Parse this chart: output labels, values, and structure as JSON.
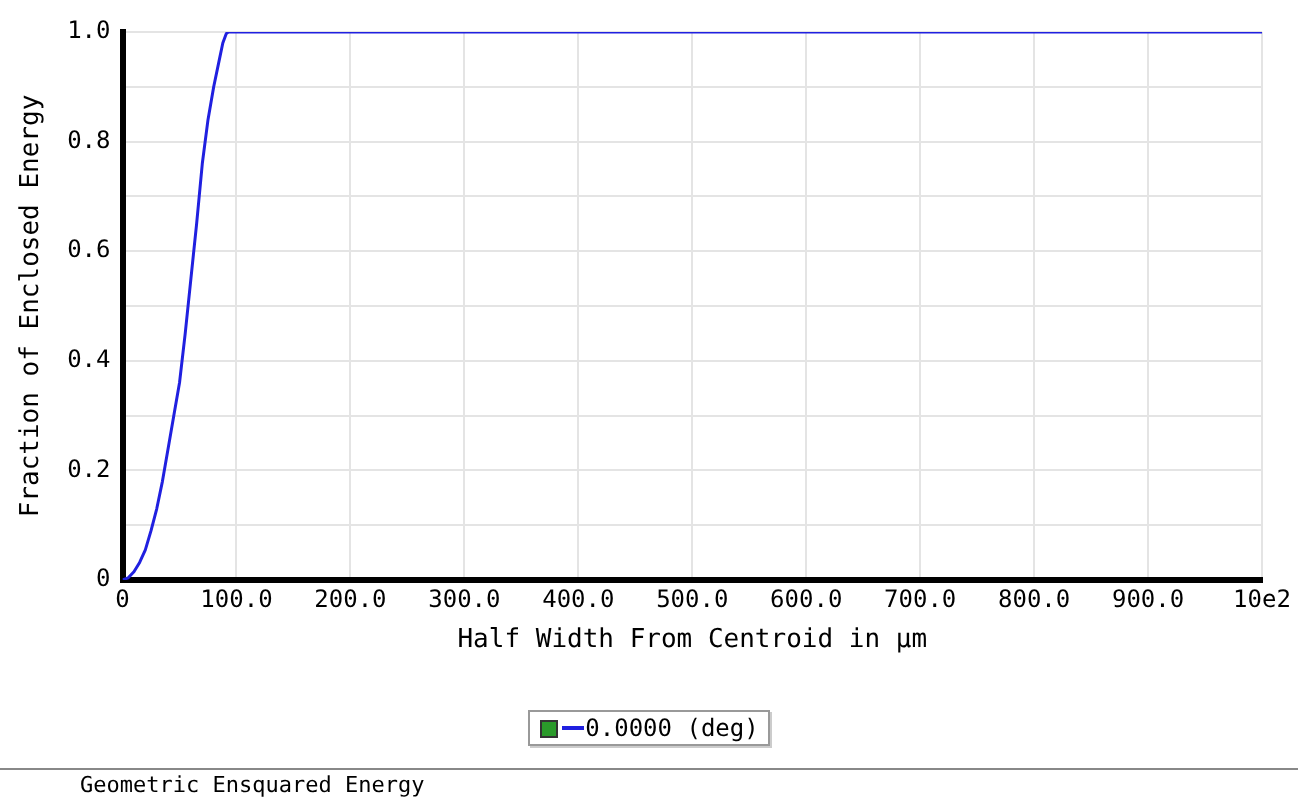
{
  "chart_data": {
    "type": "line",
    "title": "Geometric Ensquared Energy",
    "xlabel": "Half Width From Centroid in µm",
    "ylabel": "Fraction of Enclosed Energy",
    "series": [
      {
        "name": "0.0000 (deg)",
        "color": "#2020e0",
        "x": [
          0,
          5,
          10,
          15,
          20,
          25,
          30,
          35,
          40,
          45,
          50,
          55,
          60,
          65,
          70,
          75,
          80,
          85,
          88,
          91,
          93,
          1000
        ],
        "values": [
          0,
          0.004,
          0.015,
          0.032,
          0.055,
          0.09,
          0.13,
          0.18,
          0.24,
          0.3,
          0.36,
          0.45,
          0.55,
          0.65,
          0.76,
          0.84,
          0.9,
          0.95,
          0.98,
          0.997,
          1.0,
          1.0
        ]
      }
    ],
    "xlim": [
      0,
      1000
    ],
    "xticks": [
      0,
      {
        "value": 100,
        "label": "100.0"
      },
      {
        "value": 200,
        "label": "200.0"
      },
      {
        "value": 300,
        "label": "300.0"
      },
      {
        "value": 400,
        "label": "400.0"
      },
      {
        "value": 500,
        "label": "500.0"
      },
      {
        "value": 600,
        "label": "600.0"
      },
      {
        "value": 700,
        "label": "700.0"
      },
      {
        "value": 800,
        "label": "800.0"
      },
      {
        "value": 900,
        "label": "900.0"
      },
      {
        "value": 1000,
        "label": "10e2"
      }
    ],
    "ylim": [
      0,
      1
    ],
    "yticks": [
      0,
      {
        "value": 0.1,
        "label": null
      },
      0.2,
      {
        "value": 0.3,
        "label": null
      },
      0.4,
      {
        "value": 0.5,
        "label": null
      },
      0.6,
      {
        "value": 0.7,
        "label": null
      },
      0.8,
      {
        "value": 0.9,
        "label": null
      },
      {
        "value": 1,
        "label": "1.0"
      }
    ],
    "grid": true,
    "legend": "bottom",
    "marker": "none",
    "line_style": "solid"
  }
}
